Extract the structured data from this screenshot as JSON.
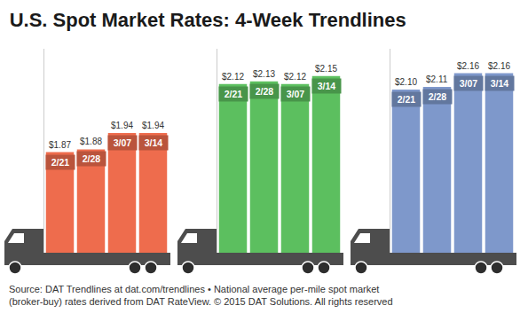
{
  "chart_data": {
    "type": "bar",
    "title": "U.S. Spot Market Rates: 4-Week Trendlines",
    "source": [
      "Source: DAT Trendlines at dat.com/trendlines • National average per-mile spot market",
      "(broker-buy) rates derived from DAT RateView. © 2015 DAT Solutions. All rights reserved"
    ],
    "categories": [
      "2/21",
      "2/28",
      "3/07",
      "3/14"
    ],
    "series": [
      {
        "color": "#ee6c4d",
        "values": [
          1.87,
          1.88,
          1.94,
          1.94
        ],
        "value_labels": [
          "$1.87",
          "$1.88",
          "$1.94",
          "$1.94"
        ]
      },
      {
        "color": "#5cbf5f",
        "values": [
          2.12,
          2.13,
          2.12,
          2.15
        ],
        "value_labels": [
          "$2.12",
          "$2.13",
          "$2.12",
          "$2.15"
        ]
      },
      {
        "color": "#7e98cb",
        "values": [
          2.1,
          2.11,
          2.16,
          2.16
        ],
        "value_labels": [
          "$2.10",
          "$2.11",
          "$2.16",
          "$2.16"
        ]
      }
    ],
    "ylim": [
      1.5,
      2.25
    ],
    "data_labels": true,
    "tick_labels": false,
    "grid": false
  }
}
